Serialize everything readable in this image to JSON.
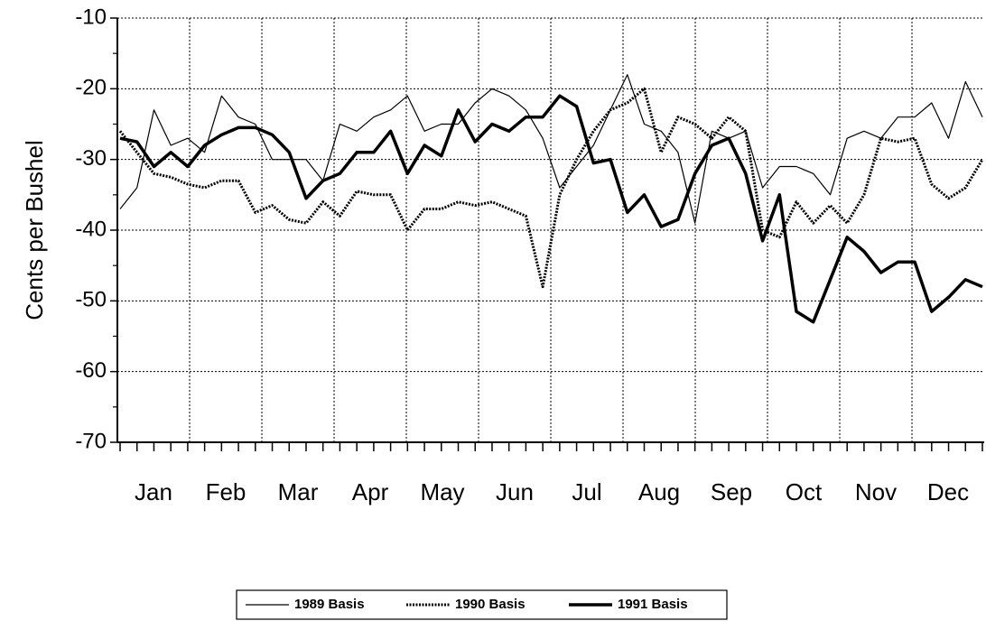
{
  "chart_data": {
    "type": "line",
    "ylabel": "Cents per Bushel",
    "x_tick_labels": [
      "Jan",
      "Feb",
      "Mar",
      "Apr",
      "May",
      "Jun",
      "Jul",
      "Aug",
      "Sep",
      "Oct",
      "Nov",
      "Dec"
    ],
    "ylim": [
      -70,
      -10
    ],
    "yticks": [
      -70,
      -60,
      -50,
      -40,
      -30,
      -20,
      -10
    ],
    "grid": true,
    "legend": "bottom",
    "series": [
      {
        "name": "1989 Basis",
        "color": "#000000",
        "style": "solid",
        "width": 1.2,
        "values": [
          -37,
          -34,
          -23,
          -28,
          -27,
          -29,
          -21,
          -24,
          -25,
          -30,
          -30,
          -30,
          -33,
          -25,
          -26,
          -24,
          -23,
          -21,
          -26,
          -25,
          -25,
          -22,
          -20,
          -21,
          -23,
          -27,
          -34,
          -31,
          -28,
          -23,
          -18,
          -25,
          -26,
          -29,
          -39,
          -26,
          -27,
          -26,
          -34,
          -31,
          -31,
          -32,
          -35,
          -27,
          -26,
          -27,
          -24,
          -24,
          -22,
          -27,
          -19,
          -24
        ]
      },
      {
        "name": "1990 Basis",
        "color": "#000000",
        "style": "dotted",
        "width": 3,
        "values": [
          -26,
          -29,
          -32,
          -32.5,
          -33.5,
          -34,
          -33,
          -33,
          -37.5,
          -36.5,
          -38.5,
          -39,
          -36,
          -38,
          -34.5,
          -35,
          -35,
          -40,
          -37,
          -37,
          -36,
          -36.5,
          -36,
          -37,
          -38,
          -48,
          -35,
          -30,
          -26,
          -23,
          -22,
          -20,
          -29,
          -24,
          -25,
          -27,
          -24,
          -26,
          -40,
          -41,
          -36,
          -39,
          -36.5,
          -39,
          -35,
          -27,
          -27.5,
          -27,
          -33.5,
          -35.5,
          -34,
          -30
        ]
      },
      {
        "name": "1991 Basis",
        "color": "#000000",
        "style": "solid",
        "width": 3.5,
        "values": [
          -27,
          -27.5,
          -31,
          -29,
          -31,
          -28,
          -26.5,
          -25.5,
          -25.5,
          -26.5,
          -29,
          -35.5,
          -33,
          -32,
          -29,
          -29,
          -26,
          -32,
          -28,
          -29.5,
          -23,
          -27.5,
          -25,
          -26,
          -24,
          -24,
          -21,
          -22.5,
          -30.5,
          -30,
          -37.5,
          -35,
          -39.5,
          -38.5,
          -32,
          -28,
          -27,
          -32,
          -41.5,
          -35,
          -51.5,
          -53,
          -47,
          -41,
          -43,
          -46,
          -44.5,
          -44.5,
          -51.5,
          -49.5,
          -47,
          -48
        ]
      }
    ]
  }
}
